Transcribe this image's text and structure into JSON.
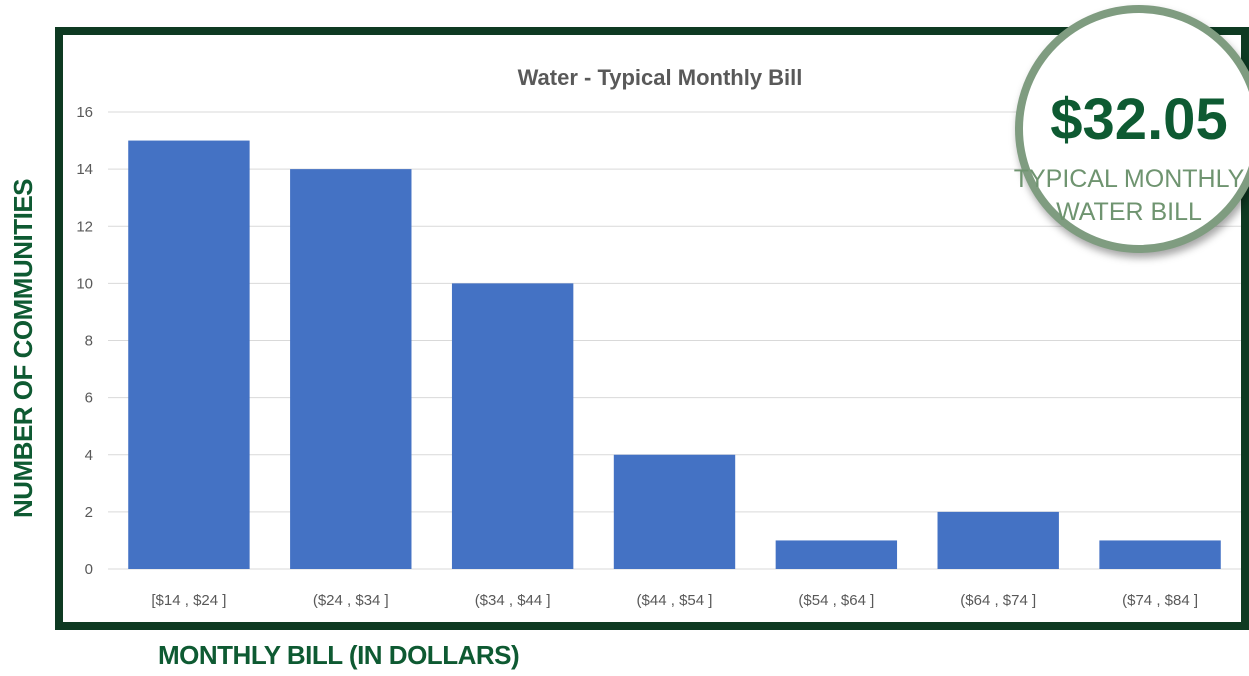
{
  "chart_data": {
    "type": "bar",
    "title": "Water - Typical Monthly Bill",
    "xlabel": "MONTHLY BILL (IN DOLLARS)",
    "ylabel": "NUMBER OF COMMUNITIES",
    "categories": [
      "[$14 , $24 ]",
      "($24 , $34 ]",
      "($34 , $44 ]",
      "($44 , $54 ]",
      "($54 , $64 ]",
      "($64 , $74 ]",
      "($74 , $84 ]"
    ],
    "values": [
      15,
      14,
      10,
      4,
      1,
      2,
      1
    ],
    "ylim": [
      0,
      16
    ],
    "yticks": [
      "0",
      "2",
      "4",
      "6",
      "8",
      "10",
      "12",
      "14",
      "16"
    ],
    "grid": true,
    "bar_color": "#4472c4"
  },
  "badge": {
    "value": "$32.05",
    "caption_line1": "TYPICAL MONTHLY",
    "caption_line2": "WATER BILL"
  },
  "colors": {
    "frame": "#0e3a22",
    "label_green": "#0e5a32",
    "badge_ring": "#7f9c80"
  }
}
